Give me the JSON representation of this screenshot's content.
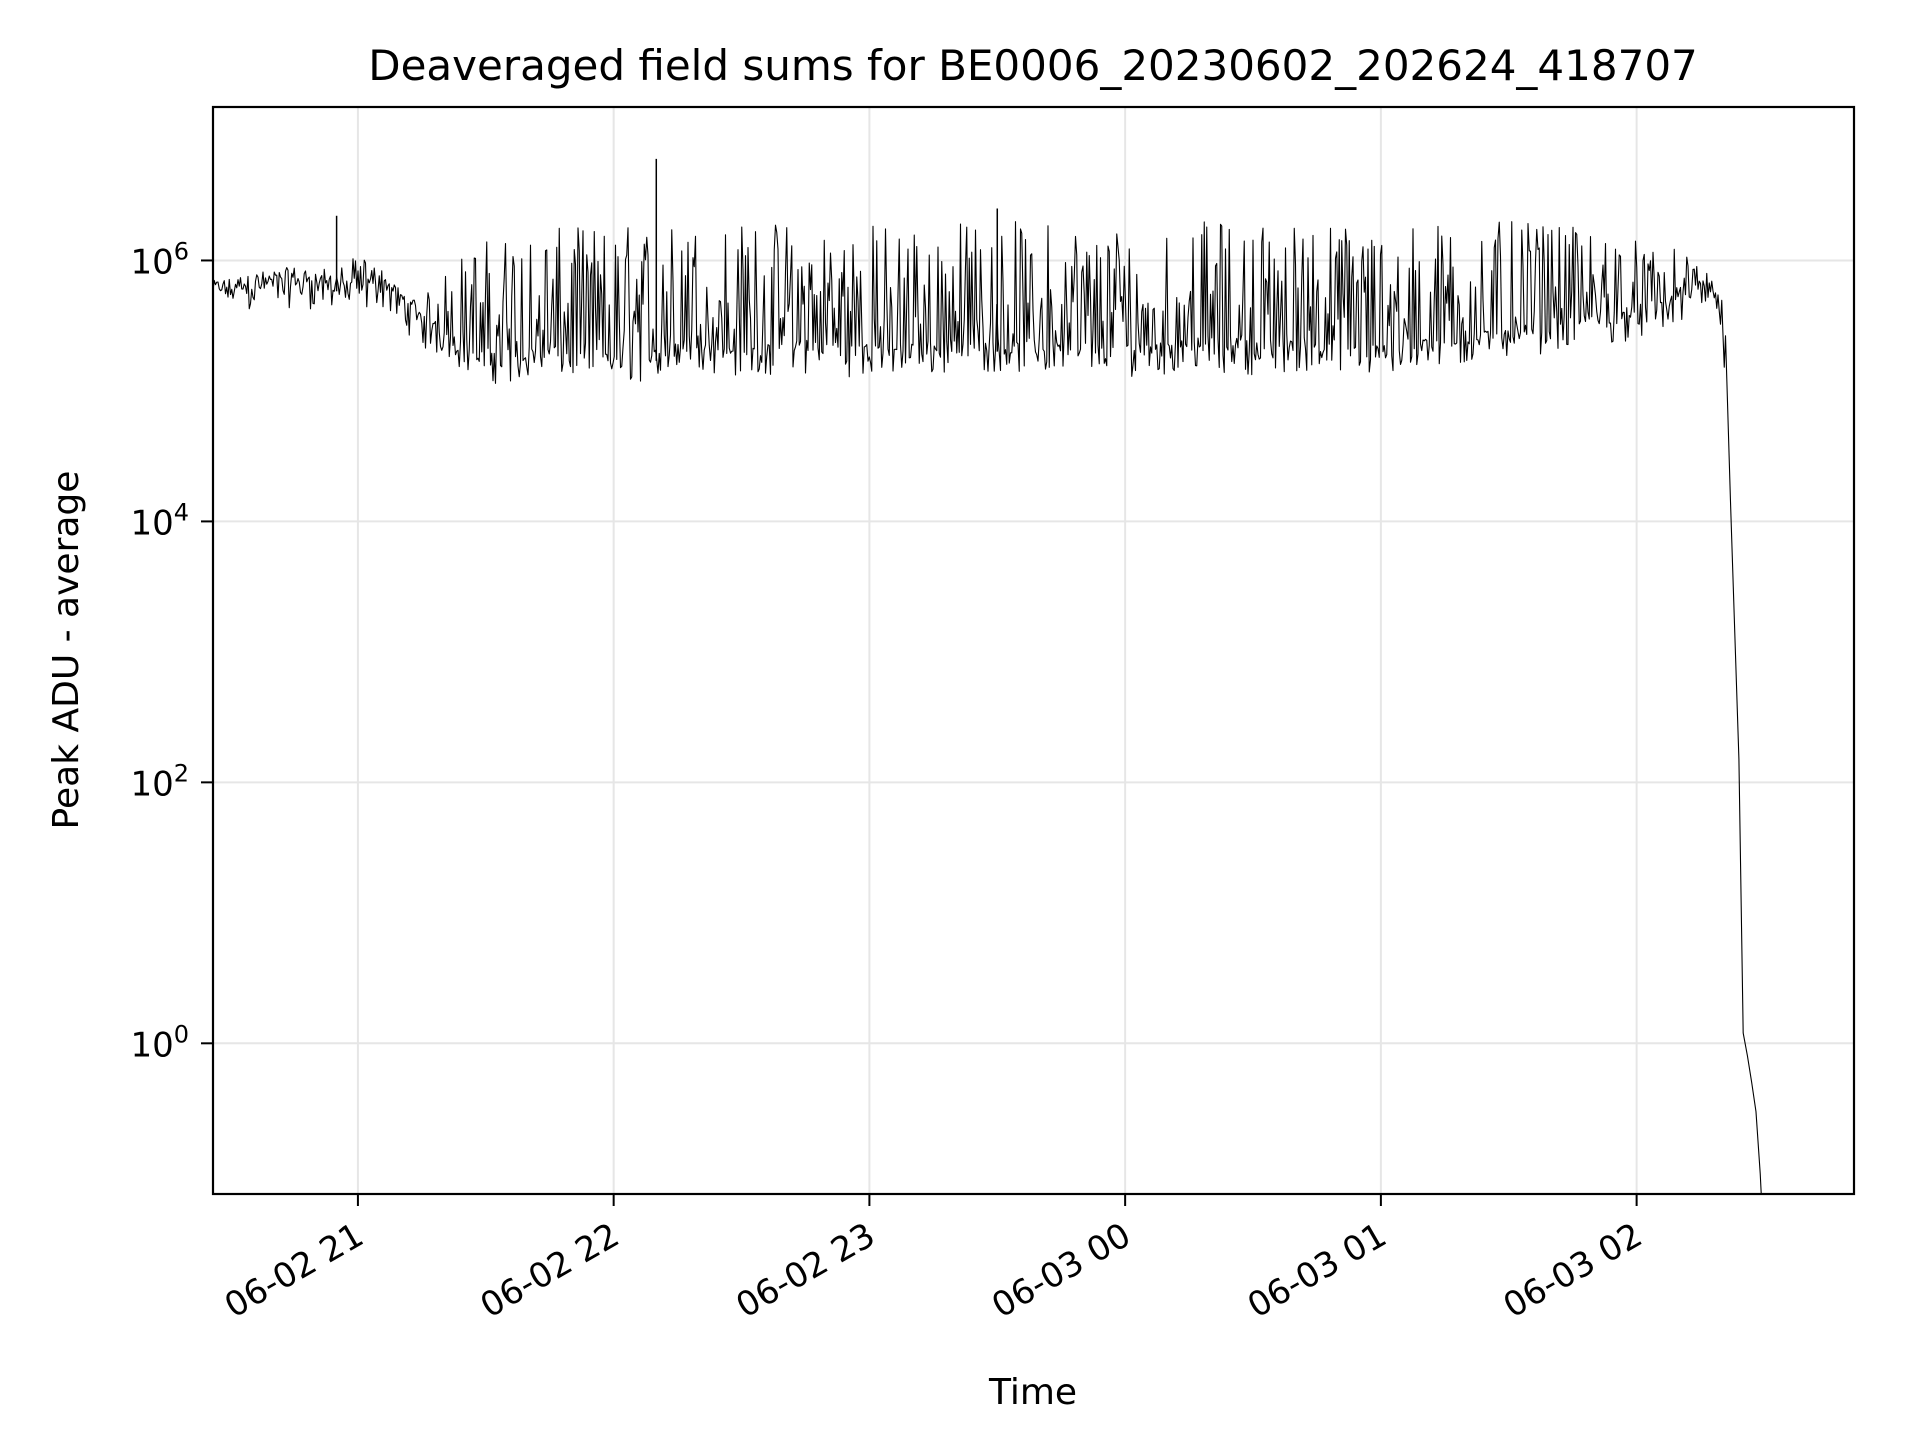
{
  "chart_data": {
    "type": "line",
    "title": "Deaveraged field sums for BE0006_20230602_202624_418707",
    "xlabel": "Time",
    "ylabel": "Peak ADU - average",
    "yscale": "log",
    "grid": true,
    "line_color": "#000000",
    "xlim": [
      "2023-06-02 20:26",
      "2023-06-03 02:51"
    ],
    "ylim": [
      0.07,
      15000000
    ],
    "x_ticks": [
      {
        "value": "2023-06-02 21:00",
        "label": "06-02 21"
      },
      {
        "value": "2023-06-02 22:00",
        "label": "06-02 22"
      },
      {
        "value": "2023-06-02 23:00",
        "label": "06-02 23"
      },
      {
        "value": "2023-06-03 00:00",
        "label": "06-03 00"
      },
      {
        "value": "2023-06-03 01:00",
        "label": "06-03 01"
      },
      {
        "value": "2023-06-03 02:00",
        "label": "06-03 02"
      }
    ],
    "y_ticks": [
      {
        "value": 1,
        "base": "10",
        "exp": "0"
      },
      {
        "value": 100,
        "base": "10",
        "exp": "2"
      },
      {
        "value": 10000,
        "base": "10",
        "exp": "4"
      },
      {
        "value": 1000000,
        "base": "10",
        "exp": "6"
      }
    ],
    "series": [
      {
        "name": "",
        "x": [
          "2023-06-02 20:26",
          "2023-06-02 20:35",
          "2023-06-02 20:45",
          "2023-06-02 20:55",
          "2023-06-02 21:00",
          "2023-06-02 21:05",
          "2023-06-02 21:10",
          "2023-06-02 21:15",
          "2023-06-02 21:20",
          "2023-06-02 21:25",
          "2023-06-02 21:30",
          "2023-06-02 21:40",
          "2023-06-02 21:50",
          "2023-06-02 22:00",
          "2023-06-02 22:10",
          "2023-06-02 22:20",
          "2023-06-02 22:30",
          "2023-06-02 22:45",
          "2023-06-02 23:00",
          "2023-06-02 23:15",
          "2023-06-02 23:30",
          "2023-06-02 23:45",
          "2023-06-03 00:00",
          "2023-06-03 00:15",
          "2023-06-03 00:30",
          "2023-06-03 00:45",
          "2023-06-03 01:00",
          "2023-06-03 01:15",
          "2023-06-03 01:30",
          "2023-06-03 01:45",
          "2023-06-03 02:00",
          "2023-06-03 02:10",
          "2023-06-03 02:15",
          "2023-06-03 02:18",
          "2023-06-03 02:20",
          "2023-06-03 02:21",
          "2023-06-03 02:22",
          "2023-06-03 02:23",
          "2023-06-03 02:24",
          "2023-06-03 02:25",
          "2023-06-03 02:26",
          "2023-06-03 02:27",
          "2023-06-03 02:28",
          "2023-06-03 02:29"
        ],
        "y": [
          550000,
          600000,
          620000,
          580000,
          520000,
          650000,
          450000,
          300000,
          250000,
          200000,
          160000,
          170000,
          180000,
          160000,
          170000,
          200000,
          180000,
          190000,
          180000,
          190000,
          200000,
          190000,
          180000,
          200000,
          190000,
          200000,
          180000,
          210000,
          250000,
          300000,
          350000,
          450000,
          550000,
          500000,
          300000,
          100000,
          15000,
          1500,
          150,
          1.2,
          0.8,
          0.5,
          0.3,
          0.1
        ],
        "envelope_upper": [
          700000,
          800000,
          900000,
          850000,
          1100000,
          900000,
          600000,
          500000,
          800000,
          1200000,
          1500000,
          1700000,
          1800000,
          1900000,
          2000000,
          2000000,
          2000000,
          2100000,
          2000000,
          2000000,
          2100000,
          2000000,
          2000000,
          2000000,
          2100000,
          2000000,
          2000000,
          2000000,
          2000000,
          1800000,
          1500000,
          1200000,
          900000,
          700000,
          500000,
          300000,
          15000,
          1500,
          150,
          2,
          1.5,
          1,
          0.5,
          0.1
        ],
        "spikes": [
          {
            "x": "2023-06-02 20:55",
            "y": 2200000
          },
          {
            "x": "2023-06-02 22:10",
            "y": 6000000
          },
          {
            "x": "2023-06-02 23:30",
            "y": 2500000
          }
        ]
      }
    ]
  }
}
